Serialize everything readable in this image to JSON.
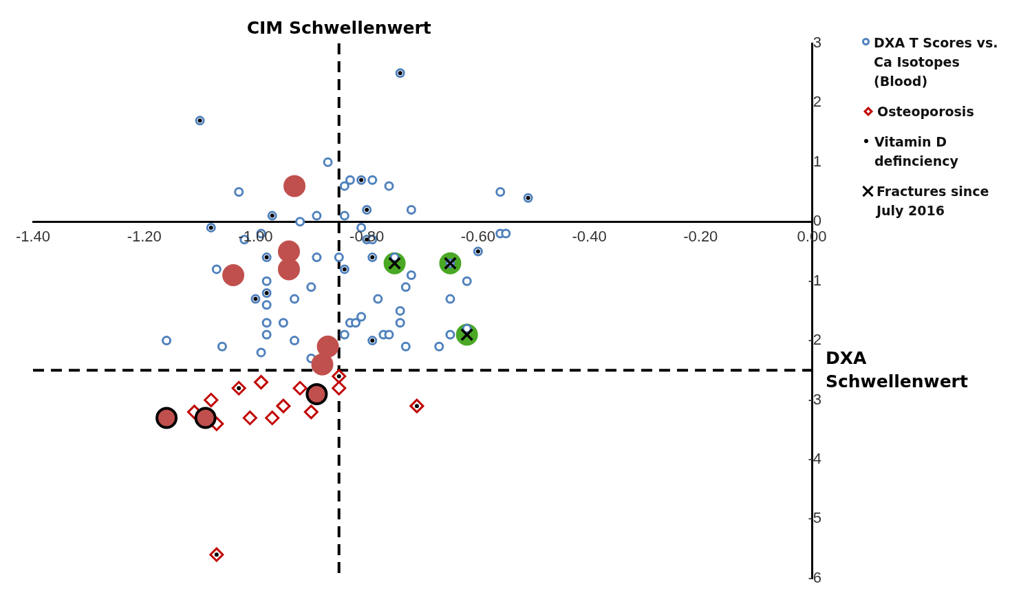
{
  "chart_data": {
    "type": "scatter",
    "legend": "right",
    "grid": false,
    "xlim": [
      -1.4,
      0
    ],
    "xticks": [
      {
        "value": -1.4,
        "label": "-1.40"
      },
      {
        "value": -1.2,
        "label": "-1.20"
      },
      {
        "value": -1.0,
        "label": "-1.00"
      },
      {
        "value": -0.8,
        "label": "-0.80"
      },
      {
        "value": -0.6,
        "label": "-0.60"
      },
      {
        "value": -0.4,
        "label": "-0.40"
      },
      {
        "value": -0.2,
        "label": "-0.20"
      },
      {
        "value": 0,
        "label": "0.00"
      }
    ],
    "ylim": [
      -6,
      3
    ],
    "yticks": [
      -6,
      -5,
      -4,
      -3,
      -2,
      -1,
      0,
      1,
      2,
      3
    ],
    "ref_lines": [
      {
        "axis": "x",
        "value": -0.85,
        "label": "CIM Schwellenwert",
        "color": "#000000",
        "line_style": "dashed"
      },
      {
        "axis": "y",
        "value": -2.5,
        "label": "DXA Schwellenwert",
        "color": "#000000",
        "line_style": "dashed"
      }
    ],
    "series": [
      {
        "color": "#4aa825",
        "marker": "circle",
        "x": [
          -0.75,
          -0.65,
          -0.62
        ],
        "values": [
          -0.7,
          -0.7,
          -1.9
        ]
      },
      {
        "name": "DXA T Scores vs. Ca Isotopes (Blood)",
        "color": "#4f81bd",
        "marker": "circle",
        "x": [
          -1.1,
          -0.74,
          -0.87,
          -1.03,
          -0.83,
          -0.84,
          -0.81,
          -0.79,
          -0.76,
          -0.72,
          -0.8,
          -0.56,
          -0.51,
          -0.97,
          -0.89,
          -0.84,
          -0.92,
          -1.08,
          -0.81,
          -0.99,
          -1.02,
          -0.8,
          -0.79,
          -0.56,
          -0.55,
          -0.6,
          -0.98,
          -0.89,
          -0.85,
          -0.79,
          -0.75,
          -1.07,
          -0.84,
          -0.72,
          -0.98,
          -0.62,
          -0.73,
          -0.9,
          -0.98,
          -1.0,
          -0.93,
          -0.78,
          -0.65,
          -0.98,
          -0.74,
          -0.81,
          -0.98,
          -0.95,
          -0.83,
          -0.82,
          -0.74,
          -0.77,
          -0.76,
          -0.98,
          -0.84,
          -0.65,
          -1.16,
          -0.93,
          -0.79,
          -1.06,
          -0.73,
          -0.67,
          -0.99,
          -0.9,
          -0.65,
          -0.62
        ],
        "values": [
          1.7,
          2.5,
          1.0,
          0.5,
          0.7,
          0.6,
          0.7,
          0.7,
          0.6,
          0.2,
          0.2,
          0.5,
          0.4,
          0.1,
          0.1,
          0.1,
          0.0,
          -0.1,
          -0.1,
          -0.2,
          -0.3,
          -0.3,
          -0.3,
          -0.2,
          -0.2,
          -0.5,
          -0.6,
          -0.6,
          -0.6,
          -0.6,
          -0.6,
          -0.8,
          -0.8,
          -0.9,
          -1.0,
          -1.0,
          -1.1,
          -1.1,
          -1.2,
          -1.3,
          -1.3,
          -1.3,
          -1.3,
          -1.4,
          -1.5,
          -1.6,
          -1.7,
          -1.7,
          -1.7,
          -1.7,
          -1.7,
          -1.9,
          -1.9,
          -1.9,
          -1.9,
          -1.9,
          -2.0,
          -2.0,
          -2.0,
          -2.1,
          -2.1,
          -2.1,
          -2.2,
          -2.3,
          -0.7,
          -1.8
        ]
      },
      {
        "name": "Osteoporosis",
        "color": "#c00000",
        "marker": "diamond",
        "x": [
          -0.85,
          -0.85,
          -1.03,
          -0.99,
          -0.92,
          -1.08,
          -1.11,
          -1.07,
          -1.01,
          -0.97,
          -0.95,
          -0.9,
          -0.71,
          -1.07
        ],
        "values": [
          -2.6,
          -2.8,
          -2.8,
          -2.7,
          -2.8,
          -3.0,
          -3.2,
          -3.4,
          -3.3,
          -3.3,
          -3.1,
          -3.2,
          -3.1,
          -5.6
        ]
      },
      {
        "name": "Vitamin D definciency",
        "color": "#000000",
        "marker": "circle",
        "x": [
          -1.1,
          -0.74,
          -0.81,
          -0.8,
          -0.51,
          -0.97,
          -1.08,
          -0.8,
          -0.6,
          -0.98,
          -0.79,
          -0.84,
          -0.98,
          -1.0,
          -0.79,
          -0.85,
          -1.03,
          -0.71,
          -1.07
        ],
        "values": [
          1.7,
          2.5,
          0.7,
          0.2,
          0.4,
          0.1,
          -0.1,
          -0.3,
          -0.5,
          -0.6,
          -0.6,
          -0.8,
          -1.2,
          -1.3,
          -2.0,
          -2.6,
          -2.8,
          -3.1,
          -5.6
        ]
      },
      {
        "color": "#c0504d",
        "marker": "circle",
        "colors": [
          "#c0504d",
          "#c0504d",
          "#c0504d",
          "#c0504d",
          "#c0504d",
          "#c0504d",
          "#000000",
          "#000000",
          "#000000"
        ],
        "x": [
          -0.93,
          -0.94,
          -0.94,
          -1.04,
          -0.87,
          -0.88,
          -0.89,
          -1.16,
          -1.09
        ],
        "values": [
          0.6,
          -0.5,
          -0.8,
          -0.9,
          -2.1,
          -2.4,
          -2.9,
          -3.3,
          -3.3
        ]
      },
      {
        "name": "Fractures since July 2016",
        "color": "#000000",
        "marker": "cross",
        "x": [
          -0.75,
          -0.65,
          -0.62
        ],
        "values": [
          -0.7,
          -0.7,
          -1.9
        ]
      }
    ]
  }
}
